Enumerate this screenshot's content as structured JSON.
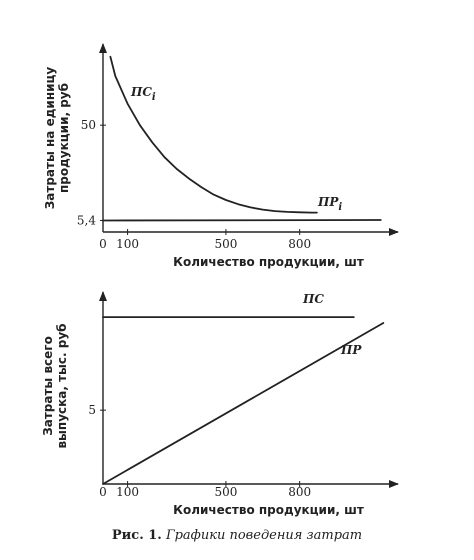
{
  "chart_data": [
    {
      "type": "line",
      "title": "",
      "xlabel": "Количество продукции, шт",
      "ylabel": "Затраты на единицу продукции, руб",
      "ylabel_lines": [
        "Затраты на единицу",
        "продукции, руб"
      ],
      "x_ticks": [
        "0",
        "100",
        "500",
        "800"
      ],
      "x_tick_values": [
        0,
        100,
        500,
        800
      ],
      "y_ticks": [
        "5,4",
        "50"
      ],
      "xlim": [
        0,
        1200
      ],
      "ylim": [
        0,
        88
      ],
      "grid": false,
      "legend": "none",
      "series": [
        {
          "name": "ПСᵢ",
          "label_main": "ПС",
          "label_sub": "i",
          "x": [
            30,
            50,
            100,
            150,
            200,
            250,
            300,
            350,
            400,
            450,
            500,
            550,
            600,
            650,
            700,
            750,
            800,
            850,
            870
          ],
          "values": [
            82,
            73,
            60,
            50,
            42,
            35,
            29.5,
            25,
            21,
            17.5,
            15,
            13,
            11.5,
            10.5,
            9.8,
            9.4,
            9.2,
            9.1,
            9.1
          ]
        },
        {
          "name": "ПРᵢ",
          "label_main": "ПР",
          "label_sub": "i",
          "x": [
            0,
            1130
          ],
          "values": [
            5.4,
            5.6
          ]
        }
      ]
    },
    {
      "type": "line",
      "title": "",
      "xlabel": "Количество продукции, шт",
      "ylabel": "Затраты всего выпуска, тыс. руб",
      "ylabel_lines": [
        "Затраты всего",
        "выпуска, тыс. руб"
      ],
      "x_ticks": [
        "0",
        "100",
        "500",
        "800"
      ],
      "x_tick_values": [
        0,
        100,
        500,
        800
      ],
      "y_ticks": [
        "5"
      ],
      "xlim": [
        0,
        1200
      ],
      "ylim": [
        0,
        13
      ],
      "grid": false,
      "legend": "none",
      "series": [
        {
          "name": "ПС",
          "label_main": "ПС",
          "label_sub": "",
          "x": [
            0,
            1020
          ],
          "values": [
            11.3,
            11.3
          ]
        },
        {
          "name": "ПР",
          "label_main": "ПР",
          "label_sub": "",
          "x": [
            0,
            1140
          ],
          "values": [
            0,
            10.9
          ]
        }
      ]
    }
  ],
  "caption": {
    "lead": "Рис. 1.",
    "text": "Графики поведения затрат"
  }
}
